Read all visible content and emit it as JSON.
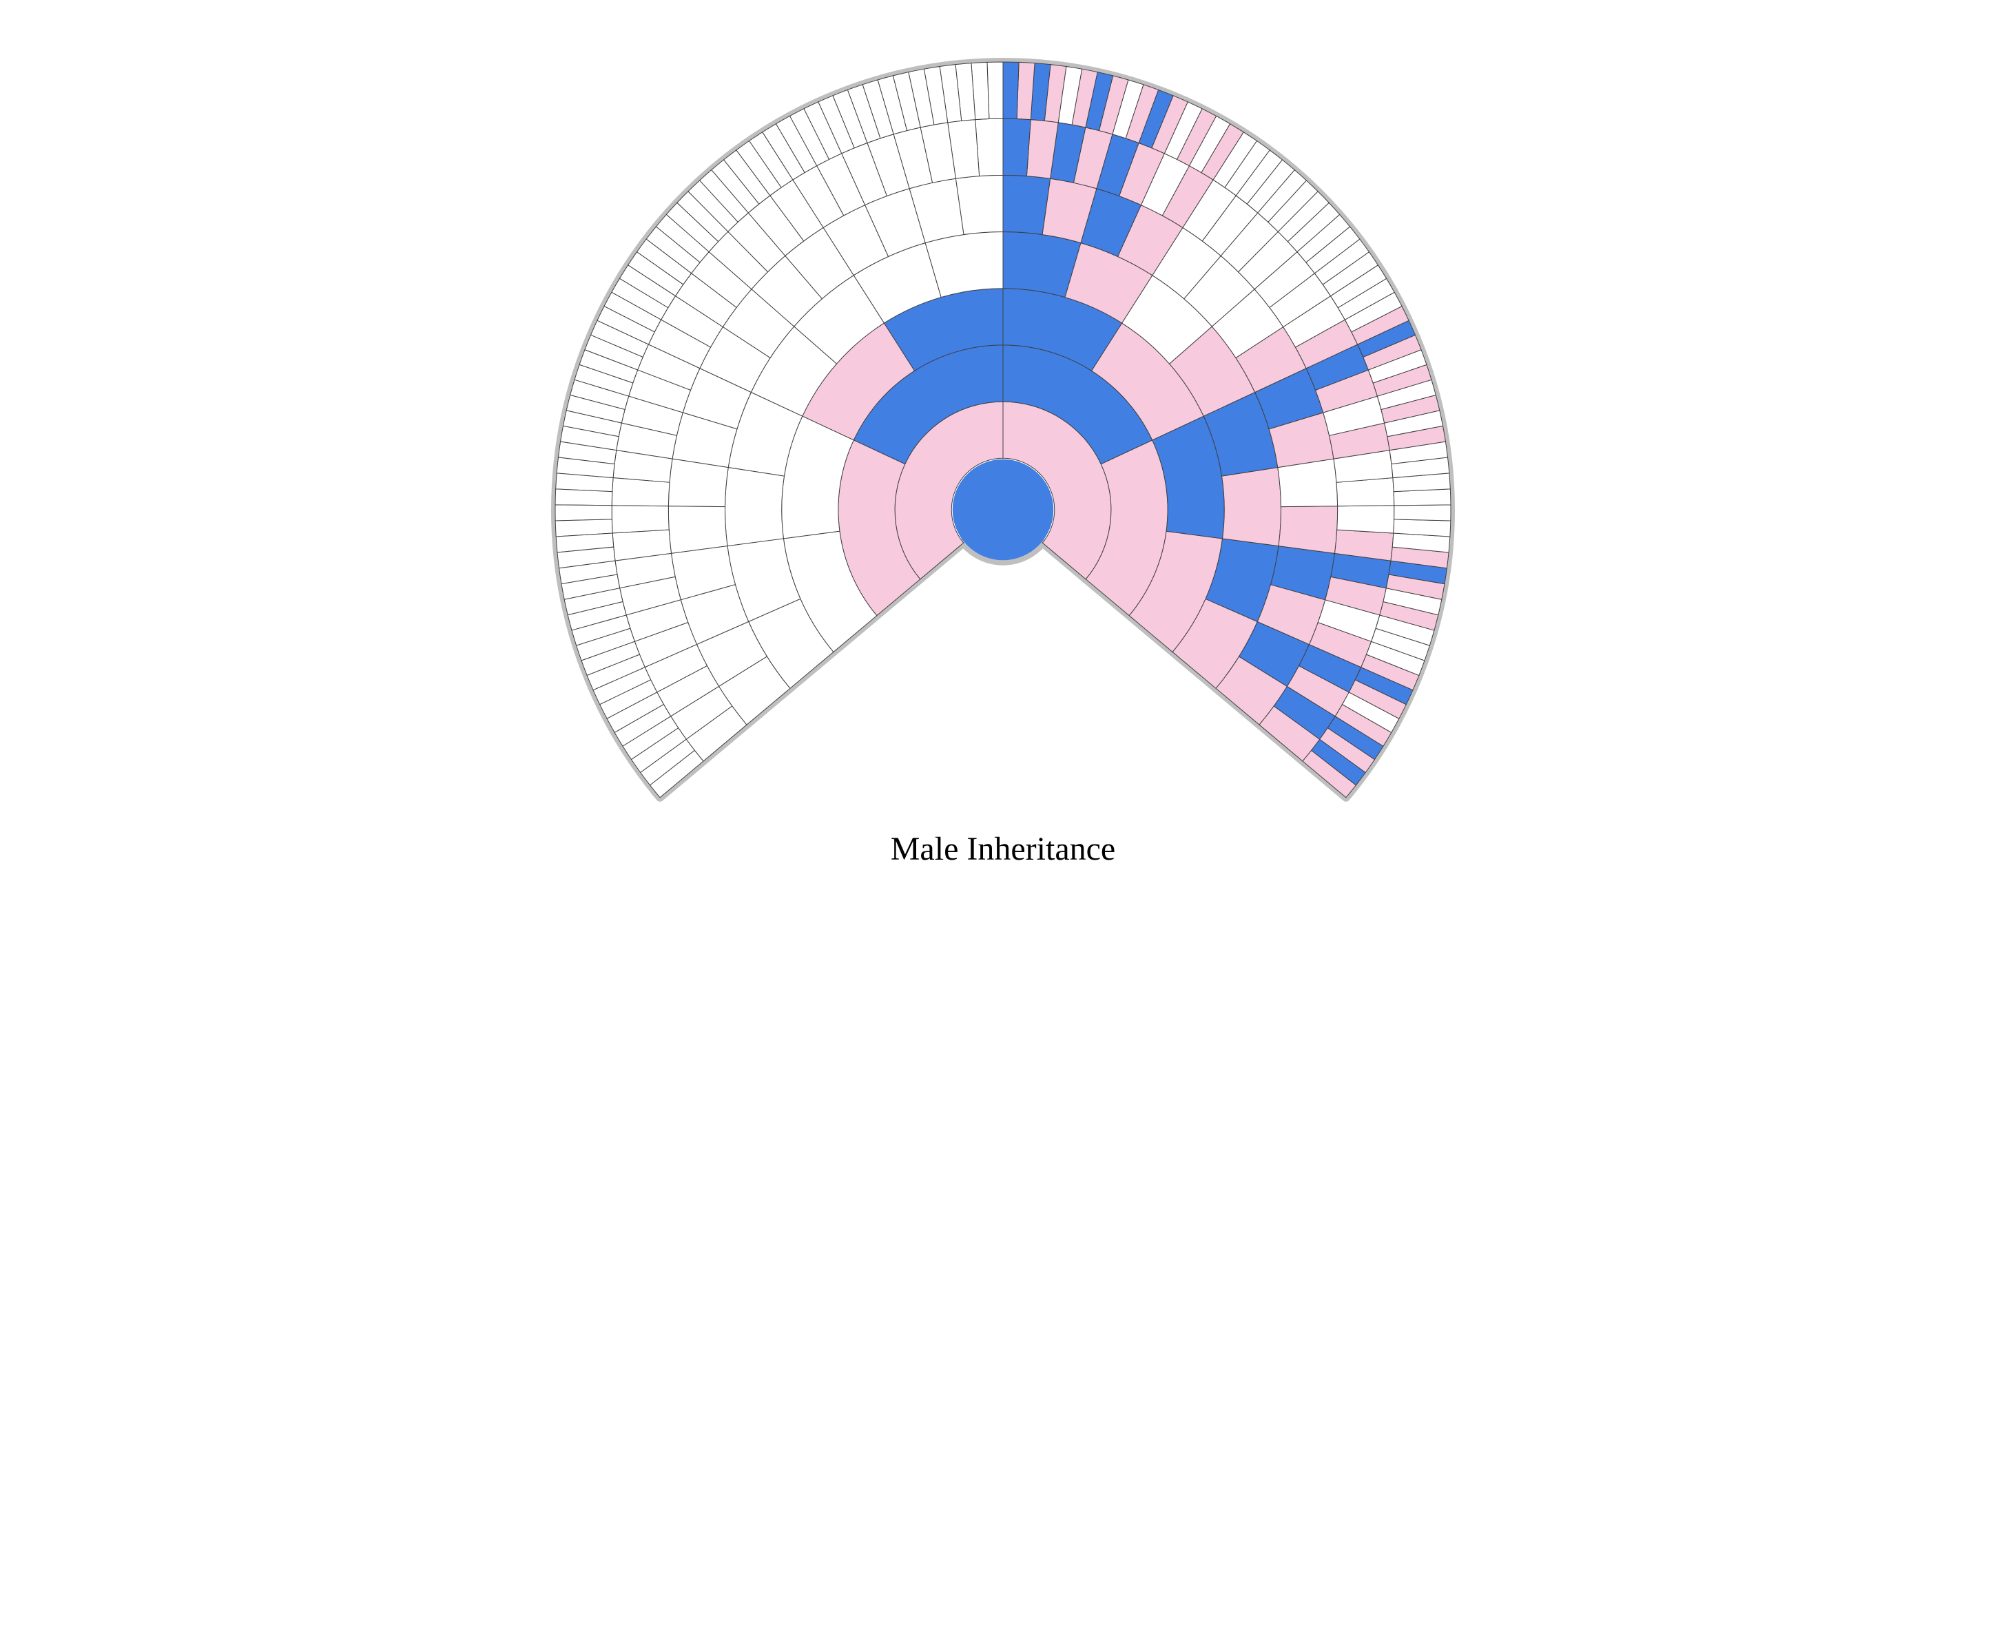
{
  "title": "Male Inheritance",
  "title_fontsize": 48,
  "title_color": "#000000",
  "background_color": "#ffffff",
  "outline_color": "#bfbfbf",
  "outline_width": 12,
  "cell_stroke_color": "#404040",
  "cell_stroke_width": 1,
  "colors": {
    "empty": "#ffffff",
    "blue": "#417fe3",
    "pink": "#f7cadd"
  },
  "center_color": "blue",
  "center_radius_pct": 0.115,
  "fan": {
    "start_angle_deg": -40,
    "end_angle_deg": 220,
    "rings": 7,
    "segments_per_ring": [
      2,
      4,
      8,
      16,
      32,
      64,
      128
    ],
    "inner_radius_pct": 0.115,
    "outer_radius_pct": 1.0
  },
  "ring_fills": [
    [
      "pink",
      "pink"
    ],
    [
      "pink",
      "blue",
      "blue",
      "pink"
    ],
    [
      "pink",
      "blue",
      "pink",
      "blue",
      "blue",
      "pink",
      "empty",
      "empty"
    ],
    [
      "pink",
      "blue",
      "pink",
      "blue",
      "pink",
      "empty",
      "pink",
      "blue",
      "empty",
      "empty",
      "empty",
      "empty",
      "empty",
      "empty",
      "empty",
      "empty"
    ],
    [
      "pink",
      "blue",
      "pink",
      "blue",
      "pink",
      "empty",
      "pink",
      "blue",
      "pink",
      "empty",
      "empty",
      "empty",
      "pink",
      "blue",
      "pink",
      "blue",
      "empty",
      "empty",
      "empty",
      "empty",
      "empty",
      "empty",
      "empty",
      "empty",
      "empty",
      "empty",
      "empty",
      "empty",
      "empty",
      "empty",
      "empty",
      "empty"
    ],
    [
      "pink",
      "blue",
      "pink",
      "blue",
      "pink",
      "empty",
      "pink",
      "blue",
      "pink",
      "empty",
      "empty",
      "empty",
      "pink",
      "empty",
      "pink",
      "blue",
      "pink",
      "empty",
      "empty",
      "empty",
      "empty",
      "empty",
      "empty",
      "empty",
      "pink",
      "empty",
      "pink",
      "blue",
      "pink",
      "blue",
      "pink",
      "blue",
      "empty",
      "empty",
      "empty",
      "empty",
      "empty",
      "empty",
      "empty",
      "empty",
      "empty",
      "empty",
      "empty",
      "empty",
      "empty",
      "empty",
      "empty",
      "empty",
      "empty",
      "empty",
      "empty",
      "empty",
      "empty",
      "empty",
      "empty",
      "empty",
      "empty",
      "empty",
      "empty",
      "empty",
      "empty",
      "empty",
      "empty",
      "empty"
    ],
    [
      "pink",
      "blue",
      "pink",
      "blue",
      "pink",
      "empty",
      "pink",
      "blue",
      "pink",
      "empty",
      "empty",
      "empty",
      "pink",
      "empty",
      "pink",
      "blue",
      "pink",
      "empty",
      "empty",
      "empty",
      "empty",
      "empty",
      "empty",
      "empty",
      "pink",
      "empty",
      "pink",
      "empty",
      "pink",
      "empty",
      "pink",
      "blue",
      "pink",
      "empty",
      "empty",
      "empty",
      "empty",
      "empty",
      "empty",
      "empty",
      "empty",
      "empty",
      "empty",
      "empty",
      "empty",
      "empty",
      "empty",
      "empty",
      "pink",
      "empty",
      "pink",
      "empty",
      "pink",
      "blue",
      "pink",
      "empty",
      "pink",
      "blue",
      "pink",
      "empty",
      "pink",
      "blue",
      "pink",
      "blue",
      "empty",
      "empty",
      "empty",
      "empty",
      "empty",
      "empty",
      "empty",
      "empty",
      "empty",
      "empty",
      "empty",
      "empty",
      "empty",
      "empty",
      "empty",
      "empty",
      "empty",
      "empty",
      "empty",
      "empty",
      "empty",
      "empty",
      "empty",
      "empty",
      "empty",
      "empty",
      "empty",
      "empty",
      "empty",
      "empty",
      "empty",
      "empty",
      "empty",
      "empty",
      "empty",
      "empty",
      "empty",
      "empty",
      "empty",
      "empty",
      "empty",
      "empty",
      "empty",
      "empty",
      "empty",
      "empty",
      "empty",
      "empty",
      "empty",
      "empty",
      "empty",
      "empty",
      "empty",
      "empty",
      "empty",
      "empty",
      "empty",
      "empty",
      "empty",
      "empty",
      "empty",
      "empty",
      "empty",
      "empty"
    ]
  ]
}
